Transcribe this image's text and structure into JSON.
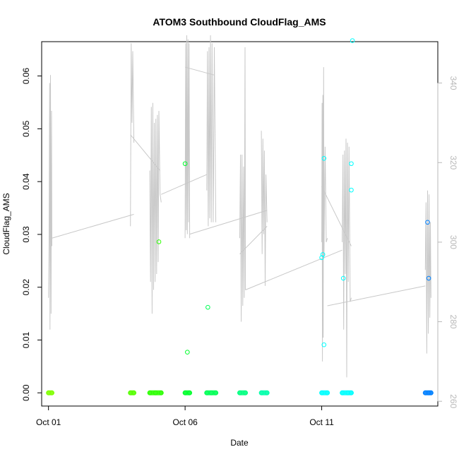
{
  "chart_data": {
    "type": "scatter",
    "title": "ATOM3 Southbound CloudFlag_AMS",
    "xlabel": "Date",
    "ylabel": "CloudFlag_AMS",
    "x_unit": "date",
    "xlim": [
      "2016-09-30T18:00",
      "2016-10-15T06:00"
    ],
    "ylim": [
      -0.0025,
      0.0665
    ],
    "x_ticks": [
      {
        "at": "2016-10-01T00:00",
        "label": "Oct 01"
      },
      {
        "at": "2016-10-06T00:00",
        "label": "Oct 06"
      },
      {
        "at": "2016-10-11T00:00",
        "label": "Oct 11"
      }
    ],
    "y_ticks": [
      0.0,
      0.01,
      0.02,
      0.03,
      0.04,
      0.05,
      0.06
    ],
    "y_tick_labels": [
      "0.00",
      "0.01",
      "0.02",
      "0.03",
      "0.04",
      "0.05",
      "0.06"
    ],
    "y2_ticks": [
      260,
      280,
      300,
      320,
      340
    ],
    "y2_tick_labels": [
      "260",
      "280",
      "300",
      "320",
      "340"
    ],
    "y2lim": [
      258.8,
      350.4
    ],
    "grid": false,
    "legend": "none",
    "colors": {
      "secondary_line": "#c8c8c8",
      "secondary_axis": "#b8b8b8",
      "point_colors_by_time": [
        "#80ff00",
        "#40ff00",
        "#00ff00",
        "#00ff40",
        "#00ff80",
        "#00ffbf",
        "#00ffff",
        "#00bfff",
        "#0080ff"
      ]
    },
    "points": [
      {
        "x": "2016-10-01T00:00",
        "y": 0.0,
        "color": "#80ff00"
      },
      {
        "x": "2016-10-01T03:00",
        "y": 0.0,
        "color": "#80ff00"
      },
      {
        "x": "2016-10-04T00:00",
        "y": 0.0,
        "color": "#55ff00"
      },
      {
        "x": "2016-10-04T03:00",
        "y": 0.0,
        "color": "#55ff00"
      },
      {
        "x": "2016-10-04T17:00",
        "y": 0.0,
        "color": "#2bff00"
      },
      {
        "x": "2016-10-04T22:00",
        "y": 0.0,
        "color": "#2bff00"
      },
      {
        "x": "2016-10-05T03:00",
        "y": 0.0,
        "color": "#2bff00"
      },
      {
        "x": "2016-10-05T01:00",
        "y": 0.0286,
        "color": "#2bff00"
      },
      {
        "x": "2016-10-06T00:00",
        "y": 0.0,
        "color": "#00ff2b"
      },
      {
        "x": "2016-10-06T04:00",
        "y": 0.0,
        "color": "#00ff2b"
      },
      {
        "x": "2016-10-06T00:00",
        "y": 0.0434,
        "color": "#00ff2b"
      },
      {
        "x": "2016-10-06T02:00",
        "y": 0.0077,
        "color": "#00ff2b"
      },
      {
        "x": "2016-10-06T19:00",
        "y": 0.0,
        "color": "#00ff55"
      },
      {
        "x": "2016-10-06T23:00",
        "y": 0.0,
        "color": "#00ff55"
      },
      {
        "x": "2016-10-07T03:00",
        "y": 0.0,
        "color": "#00ff55"
      },
      {
        "x": "2016-10-06T20:00",
        "y": 0.0162,
        "color": "#00ff55"
      },
      {
        "x": "2016-10-08T00:00",
        "y": 0.0,
        "color": "#00ff80"
      },
      {
        "x": "2016-10-08T05:00",
        "y": 0.0,
        "color": "#00ff80"
      },
      {
        "x": "2016-10-08T19:00",
        "y": 0.0,
        "color": "#00ffaa"
      },
      {
        "x": "2016-10-09T00:00",
        "y": 0.0,
        "color": "#00ffaa"
      },
      {
        "x": "2016-10-11T00:00",
        "y": 0.0,
        "color": "#00ffff"
      },
      {
        "x": "2016-10-11T05:00",
        "y": 0.0,
        "color": "#00ffff"
      },
      {
        "x": "2016-10-11T02:00",
        "y": 0.0444,
        "color": "#00ffff"
      },
      {
        "x": "2016-10-11T01:00",
        "y": 0.0262,
        "color": "#00ffff"
      },
      {
        "x": "2016-10-11T00:00",
        "y": 0.0256,
        "color": "#00ffff"
      },
      {
        "x": "2016-10-11T02:00",
        "y": 0.0091,
        "color": "#00ffff"
      },
      {
        "x": "2016-10-11T18:00",
        "y": 0.0,
        "color": "#00ffff"
      },
      {
        "x": "2016-10-11T23:00",
        "y": 0.0,
        "color": "#00ffff"
      },
      {
        "x": "2016-10-12T02:00",
        "y": 0.0,
        "color": "#00ffff"
      },
      {
        "x": "2016-10-12T03:00",
        "y": 0.0667,
        "color": "#00ffff"
      },
      {
        "x": "2016-10-12T02:00",
        "y": 0.0434,
        "color": "#00ffff"
      },
      {
        "x": "2016-10-12T02:00",
        "y": 0.0384,
        "color": "#00ffff"
      },
      {
        "x": "2016-10-11T19:00",
        "y": 0.0217,
        "color": "#00ffff"
      },
      {
        "x": "2016-10-14T19:00",
        "y": 0.0,
        "color": "#0080ff"
      },
      {
        "x": "2016-10-15T00:00",
        "y": 0.0,
        "color": "#0080ff"
      },
      {
        "x": "2016-10-14T22:00",
        "y": 0.0,
        "color": "#0080ff"
      },
      {
        "x": "2016-10-14T21:00",
        "y": 0.0323,
        "color": "#0080ff"
      },
      {
        "x": "2016-10-14T22:00",
        "y": 0.0217,
        "color": "#0080ff"
      }
    ],
    "zero_bands": [
      {
        "x0": "2016-10-01T00:00",
        "x1": "2016-10-01T03:00",
        "color": "#80ff00"
      },
      {
        "x0": "2016-10-04T00:00",
        "x1": "2016-10-04T03:00",
        "color": "#55ff00"
      },
      {
        "x0": "2016-10-04T17:00",
        "x1": "2016-10-05T03:00",
        "color": "#2bff00"
      },
      {
        "x0": "2016-10-06T00:00",
        "x1": "2016-10-06T04:00",
        "color": "#00ff2b"
      },
      {
        "x0": "2016-10-06T19:00",
        "x1": "2016-10-07T03:00",
        "color": "#00ff55"
      },
      {
        "x0": "2016-10-08T00:00",
        "x1": "2016-10-08T05:00",
        "color": "#00ff80"
      },
      {
        "x0": "2016-10-08T19:00",
        "x1": "2016-10-09T00:00",
        "color": "#00ffaa"
      },
      {
        "x0": "2016-10-11T00:00",
        "x1": "2016-10-11T05:00",
        "color": "#00ffff"
      },
      {
        "x0": "2016-10-11T18:00",
        "x1": "2016-10-12T02:00",
        "color": "#00ffff"
      },
      {
        "x0": "2016-10-14T19:00",
        "x1": "2016-10-15T00:00",
        "color": "#0080ff"
      }
    ],
    "secondary_series": {
      "name": "",
      "points": [
        [
          "2016-10-01T00:00",
          286
        ],
        [
          "2016-10-01T00:30",
          300
        ],
        [
          "2016-10-01T01:00",
          340
        ],
        [
          "2016-10-01T01:20",
          278
        ],
        [
          "2016-10-01T01:45",
          342
        ],
        [
          "2016-10-01T02:15",
          282
        ],
        [
          "2016-10-01T02:40",
          333
        ],
        [
          "2016-10-01T03:00",
          299
        ],
        [
          "2016-10-04T00:00",
          304
        ],
        [
          "2016-10-04T00:40",
          350
        ],
        [
          "2016-10-04T01:20",
          330
        ],
        [
          "2016-10-04T02:00",
          348
        ],
        [
          "2016-10-04T03:00",
          325
        ],
        [
          "2016-10-04T17:00",
          318
        ],
        [
          "2016-10-04T17:40",
          290
        ],
        [
          "2016-10-04T18:20",
          334
        ],
        [
          "2016-10-04T19:00",
          282
        ],
        [
          "2016-10-04T19:40",
          335
        ],
        [
          "2016-10-04T20:20",
          288
        ],
        [
          "2016-10-04T21:00",
          330
        ],
        [
          "2016-10-04T21:40",
          290
        ],
        [
          "2016-10-04T22:20",
          331
        ],
        [
          "2016-10-04T23:00",
          292
        ],
        [
          "2016-10-04T23:40",
          332
        ],
        [
          "2016-10-05T00:20",
          295
        ],
        [
          "2016-10-05T01:00",
          333
        ],
        [
          "2016-10-05T02:00",
          312
        ],
        [
          "2016-10-05T03:00",
          310
        ],
        [
          "2016-10-06T00:00",
          301
        ],
        [
          "2016-10-06T00:30",
          350
        ],
        [
          "2016-10-06T01:00",
          303
        ],
        [
          "2016-10-06T01:30",
          352
        ],
        [
          "2016-10-06T02:00",
          302
        ],
        [
          "2016-10-06T02:30",
          351
        ],
        [
          "2016-10-06T03:00",
          305
        ],
        [
          "2016-10-06T03:30",
          350
        ],
        [
          "2016-10-06T04:00",
          301
        ],
        [
          "2016-10-06T19:00",
          313
        ],
        [
          "2016-10-06T19:40",
          348
        ],
        [
          "2016-10-06T20:20",
          304
        ],
        [
          "2016-10-06T21:00",
          349
        ],
        [
          "2016-10-06T21:40",
          306
        ],
        [
          "2016-10-06T22:20",
          352
        ],
        [
          "2016-10-06T23:00",
          305
        ],
        [
          "2016-10-06T23:40",
          350
        ],
        [
          "2016-10-07T00:40",
          305
        ],
        [
          "2016-10-07T01:40",
          349
        ],
        [
          "2016-10-07T03:00",
          305
        ],
        [
          "2016-10-08T00:00",
          301
        ],
        [
          "2016-10-08T00:40",
          322
        ],
        [
          "2016-10-08T01:20",
          280
        ],
        [
          "2016-10-08T02:00",
          322
        ],
        [
          "2016-10-08T02:40",
          284
        ],
        [
          "2016-10-08T03:20",
          319
        ],
        [
          "2016-10-08T04:00",
          286
        ],
        [
          "2016-10-08T04:40",
          349
        ],
        [
          "2016-10-08T05:00",
          288
        ],
        [
          "2016-10-08T19:00",
          328
        ],
        [
          "2016-10-08T19:40",
          297
        ],
        [
          "2016-10-08T20:20",
          326
        ],
        [
          "2016-10-08T21:00",
          302
        ],
        [
          "2016-10-08T21:40",
          323
        ],
        [
          "2016-10-08T22:20",
          289
        ],
        [
          "2016-10-08T23:00",
          317
        ],
        [
          "2016-10-09T00:00",
          305
        ],
        [
          "2016-10-11T00:00",
          300
        ],
        [
          "2016-10-11T00:20",
          335
        ],
        [
          "2016-10-11T00:40",
          270
        ],
        [
          "2016-10-11T01:00",
          337
        ],
        [
          "2016-10-11T01:20",
          276
        ],
        [
          "2016-10-11T01:40",
          344
        ],
        [
          "2016-10-11T02:00",
          296
        ],
        [
          "2016-10-11T03:00",
          324
        ],
        [
          "2016-10-11T04:00",
          300
        ],
        [
          "2016-10-11T05:00",
          301
        ],
        [
          "2016-10-11T18:00",
          300
        ],
        [
          "2016-10-11T18:40",
          322
        ],
        [
          "2016-10-11T19:20",
          278
        ],
        [
          "2016-10-11T20:00",
          323
        ],
        [
          "2016-10-11T20:40",
          292
        ],
        [
          "2016-10-11T21:20",
          326
        ],
        [
          "2016-10-11T22:00",
          266
        ],
        [
          "2016-10-11T22:40",
          325
        ],
        [
          "2016-10-11T23:20",
          290
        ],
        [
          "2016-10-12T00:00",
          324
        ],
        [
          "2016-10-12T01:00",
          285
        ],
        [
          "2016-10-12T02:00",
          286
        ],
        [
          "2016-10-14T19:00",
          293
        ],
        [
          "2016-10-14T19:40",
          310
        ],
        [
          "2016-10-14T20:20",
          272
        ],
        [
          "2016-10-14T21:00",
          313
        ],
        [
          "2016-10-14T21:40",
          277
        ],
        [
          "2016-10-14T22:20",
          312
        ],
        [
          "2016-10-14T23:00",
          281
        ],
        [
          "2016-10-14T23:30",
          305
        ],
        [
          "2016-10-15T00:00",
          286
        ]
      ],
      "connectors": [
        [
          [
            "2016-10-01T03:00",
            301
          ],
          [
            "2016-10-04T03:00",
            307
          ]
        ],
        [
          [
            "2016-10-04T00:00",
            327
          ],
          [
            "2016-10-05T02:00",
            318
          ]
        ],
        [
          [
            "2016-10-05T03:00",
            312
          ],
          [
            "2016-10-06T19:00",
            317
          ]
        ],
        [
          [
            "2016-10-06T00:00",
            344
          ],
          [
            "2016-10-07T01:40",
            342
          ]
        ],
        [
          [
            "2016-10-06T04:00",
            302
          ],
          [
            "2016-10-09T00:00",
            308
          ]
        ],
        [
          [
            "2016-10-08T00:00",
            297
          ],
          [
            "2016-10-09T00:00",
            304
          ]
        ],
        [
          [
            "2016-10-08T05:00",
            288
          ],
          [
            "2016-10-11T18:00",
            298
          ]
        ],
        [
          [
            "2016-10-11T00:00",
            314
          ],
          [
            "2016-10-12T02:00",
            299
          ]
        ],
        [
          [
            "2016-10-11T05:00",
            284
          ],
          [
            "2016-10-14T19:00",
            289
          ]
        ]
      ]
    }
  }
}
